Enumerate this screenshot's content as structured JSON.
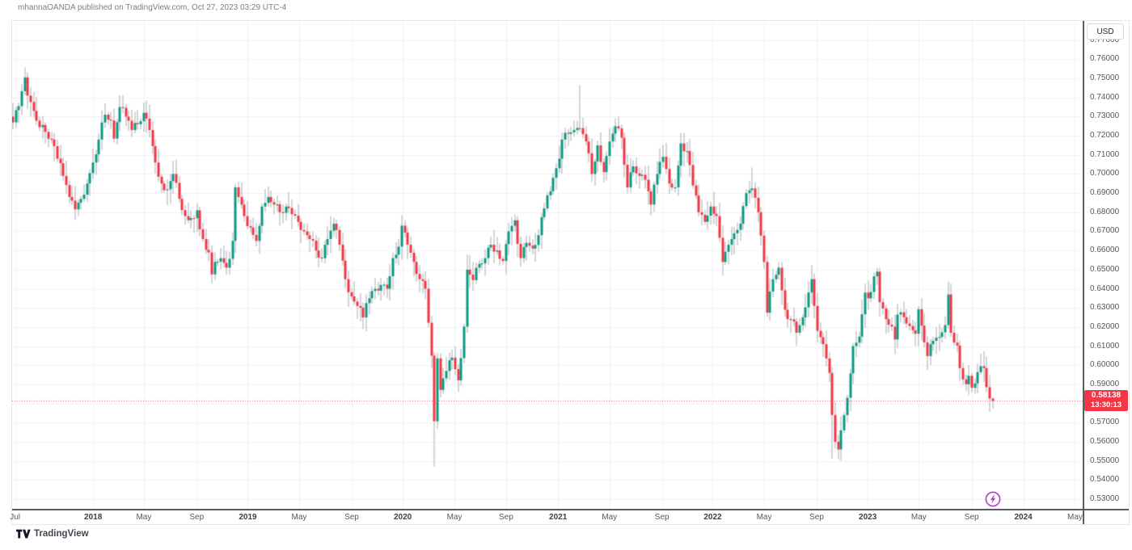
{
  "header": {
    "attribution": "mhannaOANDA published on TradingView.com, Oct 27, 2023 03:29 UTC-4"
  },
  "footer": {
    "logo_text": "TradingView"
  },
  "price_axis": {
    "currency_button": "USD",
    "ticks": [
      "0.77000",
      "0.76000",
      "0.75000",
      "0.74000",
      "0.73000",
      "0.72000",
      "0.71000",
      "0.70000",
      "0.69000",
      "0.68000",
      "0.67000",
      "0.66000",
      "0.65000",
      "0.64000",
      "0.63000",
      "0.62000",
      "0.61000",
      "0.60000",
      "0.59000",
      "0.57000",
      "0.56000",
      "0.55000",
      "0.54000",
      "0.53000"
    ],
    "last_price_label": {
      "price": "0.58138",
      "countdown": "13:30:13"
    }
  },
  "time_axis": {
    "ticks": [
      {
        "label": "Jul",
        "week": 0.71,
        "year": false
      },
      {
        "label": "2018",
        "week": 27,
        "year": true
      },
      {
        "label": "May",
        "week": 44.1,
        "year": false
      },
      {
        "label": "Sep",
        "week": 61.9,
        "year": false
      },
      {
        "label": "2019",
        "week": 79.1,
        "year": true
      },
      {
        "label": "May",
        "week": 96.4,
        "year": false
      },
      {
        "label": "Sep",
        "week": 114.1,
        "year": false
      },
      {
        "label": "2020",
        "week": 131.3,
        "year": true
      },
      {
        "label": "May",
        "week": 148.7,
        "year": false
      },
      {
        "label": "Sep",
        "week": 166.1,
        "year": false
      },
      {
        "label": "2021",
        "week": 183.6,
        "year": true
      },
      {
        "label": "May",
        "week": 200.9,
        "year": false
      },
      {
        "label": "Sep",
        "week": 218.6,
        "year": false
      },
      {
        "label": "2022",
        "week": 235.7,
        "year": true
      },
      {
        "label": "May",
        "week": 253.0,
        "year": false
      },
      {
        "label": "Sep",
        "week": 270.7,
        "year": false
      },
      {
        "label": "2023",
        "week": 287.9,
        "year": true
      },
      {
        "label": "May",
        "week": 305.1,
        "year": false
      },
      {
        "label": "Sep",
        "week": 322.9,
        "year": false
      },
      {
        "label": "2024",
        "week": 340.3,
        "year": true
      },
      {
        "label": "May",
        "week": 357.7,
        "year": false
      }
    ]
  },
  "marker": {
    "type": "lightning",
    "color": "#ab3fc1"
  },
  "chart_data": {
    "type": "candlestick",
    "quote_currency": "USD",
    "last_price": 0.58138,
    "countdown": "13:30:13",
    "visible_price_range": [
      0.5254,
      0.7792
    ],
    "grid": true,
    "up_color": "#089981",
    "down_color": "#f23645",
    "wick_color": "#a9acb3",
    "grid_color": "#f0f1f4",
    "last_price_color": "#f23645",
    "weeks_total": 331,
    "weekly_close_anchors": [
      [
        0,
        0.727
      ],
      [
        2,
        0.7355
      ],
      [
        4,
        0.7505
      ],
      [
        5,
        0.741
      ],
      [
        7,
        0.733
      ],
      [
        9,
        0.7245
      ],
      [
        11,
        0.722
      ],
      [
        13,
        0.718
      ],
      [
        15,
        0.708
      ],
      [
        17,
        0.699
      ],
      [
        19,
        0.688
      ],
      [
        21,
        0.6815
      ],
      [
        23,
        0.687
      ],
      [
        25,
        0.695
      ],
      [
        27,
        0.706
      ],
      [
        29,
        0.718
      ],
      [
        31,
        0.731
      ],
      [
        33,
        0.728
      ],
      [
        34,
        0.7185
      ],
      [
        36,
        0.735
      ],
      [
        38,
        0.73
      ],
      [
        40,
        0.723
      ],
      [
        42,
        0.726
      ],
      [
        44,
        0.732
      ],
      [
        46,
        0.723
      ],
      [
        48,
        0.706
      ],
      [
        50,
        0.695
      ],
      [
        52,
        0.692
      ],
      [
        54,
        0.7
      ],
      [
        56,
        0.687
      ],
      [
        58,
        0.678
      ],
      [
        60,
        0.677
      ],
      [
        62,
        0.681
      ],
      [
        64,
        0.666
      ],
      [
        66,
        0.659
      ],
      [
        67,
        0.6475
      ],
      [
        68,
        0.654
      ],
      [
        70,
        0.656
      ],
      [
        72,
        0.651
      ],
      [
        74,
        0.665
      ],
      [
        75,
        0.693
      ],
      [
        76,
        0.688
      ],
      [
        78,
        0.678
      ],
      [
        80,
        0.672
      ],
      [
        82,
        0.665
      ],
      [
        84,
        0.683
      ],
      [
        86,
        0.688
      ],
      [
        88,
        0.684
      ],
      [
        90,
        0.68
      ],
      [
        92,
        0.683
      ],
      [
        94,
        0.679
      ],
      [
        96,
        0.675
      ],
      [
        98,
        0.67
      ],
      [
        100,
        0.666
      ],
      [
        102,
        0.66
      ],
      [
        104,
        0.656
      ],
      [
        106,
        0.666
      ],
      [
        108,
        0.674
      ],
      [
        110,
        0.663
      ],
      [
        112,
        0.645
      ],
      [
        114,
        0.636
      ],
      [
        116,
        0.631
      ],
      [
        118,
        0.625
      ],
      [
        120,
        0.635
      ],
      [
        122,
        0.64
      ],
      [
        124,
        0.642
      ],
      [
        126,
        0.64
      ],
      [
        128,
        0.656
      ],
      [
        130,
        0.662
      ],
      [
        131,
        0.673
      ],
      [
        133,
        0.663
      ],
      [
        135,
        0.654
      ],
      [
        137,
        0.645
      ],
      [
        139,
        0.64
      ],
      [
        141,
        0.605
      ],
      [
        142,
        0.5707
      ],
      [
        143,
        0.6036
      ],
      [
        144,
        0.5871
      ],
      [
        146,
        0.597
      ],
      [
        148,
        0.604
      ],
      [
        150,
        0.5921
      ],
      [
        152,
        0.6202
      ],
      [
        153,
        0.65
      ],
      [
        155,
        0.6445
      ],
      [
        157,
        0.653
      ],
      [
        159,
        0.656
      ],
      [
        161,
        0.663
      ],
      [
        163,
        0.66
      ],
      [
        165,
        0.6545
      ],
      [
        167,
        0.67
      ],
      [
        169,
        0.6758
      ],
      [
        171,
        0.656
      ],
      [
        173,
        0.664
      ],
      [
        175,
        0.661
      ],
      [
        177,
        0.668
      ],
      [
        179,
        0.682
      ],
      [
        181,
        0.691
      ],
      [
        183,
        0.703
      ],
      [
        185,
        0.718
      ],
      [
        187,
        0.721
      ],
      [
        189,
        0.723
      ],
      [
        191,
        0.724
      ],
      [
        193,
        0.717
      ],
      [
        195,
        0.7
      ],
      [
        197,
        0.715
      ],
      [
        199,
        0.701
      ],
      [
        201,
        0.717
      ],
      [
        203,
        0.725
      ],
      [
        205,
        0.719
      ],
      [
        207,
        0.693
      ],
      [
        209,
        0.704
      ],
      [
        211,
        0.699
      ],
      [
        213,
        0.697
      ],
      [
        215,
        0.684
      ],
      [
        217,
        0.7
      ],
      [
        219,
        0.709
      ],
      [
        221,
        0.695
      ],
      [
        223,
        0.693
      ],
      [
        225,
        0.716
      ],
      [
        227,
        0.712
      ],
      [
        229,
        0.694
      ],
      [
        231,
        0.68
      ],
      [
        233,
        0.675
      ],
      [
        235,
        0.683
      ],
      [
        237,
        0.678
      ],
      [
        239,
        0.654
      ],
      [
        241,
        0.663
      ],
      [
        243,
        0.669
      ],
      [
        245,
        0.674
      ],
      [
        247,
        0.69
      ],
      [
        249,
        0.6925
      ],
      [
        251,
        0.68
      ],
      [
        253,
        0.654
      ],
      [
        254,
        0.6275
      ],
      [
        256,
        0.645
      ],
      [
        258,
        0.651
      ],
      [
        260,
        0.629
      ],
      [
        262,
        0.624
      ],
      [
        264,
        0.617
      ],
      [
        266,
        0.625
      ],
      [
        268,
        0.638
      ],
      [
        269,
        0.645
      ],
      [
        271,
        0.618
      ],
      [
        273,
        0.611
      ],
      [
        275,
        0.596
      ],
      [
        276,
        0.574
      ],
      [
        277,
        0.56
      ],
      [
        278,
        0.556
      ],
      [
        279,
        0.566
      ],
      [
        281,
        0.583
      ],
      [
        283,
        0.61
      ],
      [
        285,
        0.615
      ],
      [
        287,
        0.638
      ],
      [
        288,
        0.635
      ],
      [
        289,
        0.6383
      ],
      [
        290,
        0.6465
      ],
      [
        291,
        0.6489
      ],
      [
        292,
        0.633
      ],
      [
        294,
        0.6241
      ],
      [
        296,
        0.6202
      ],
      [
        297,
        0.6135
      ],
      [
        298,
        0.6265
      ],
      [
        300,
        0.6251
      ],
      [
        302,
        0.6205
      ],
      [
        304,
        0.6165
      ],
      [
        305,
        0.6293
      ],
      [
        306,
        0.6207
      ],
      [
        308,
        0.6048
      ],
      [
        310,
        0.6128
      ],
      [
        312,
        0.6148
      ],
      [
        314,
        0.621
      ],
      [
        315,
        0.637
      ],
      [
        316,
        0.617
      ],
      [
        318,
        0.6103
      ],
      [
        319,
        0.5985
      ],
      [
        320,
        0.5926
      ],
      [
        321,
        0.5901
      ],
      [
        322,
        0.5945
      ],
      [
        323,
        0.5882
      ],
      [
        324,
        0.5905
      ],
      [
        325,
        0.5964
      ],
      [
        326,
        0.5995
      ],
      [
        327,
        0.5985
      ],
      [
        328,
        0.5885
      ],
      [
        329,
        0.5826
      ],
      [
        330,
        0.58138
      ]
    ],
    "overrides": {
      "4": {
        "h": 0.7558
      },
      "142": {
        "l": 0.547
      },
      "191": {
        "h": 0.7465
      },
      "249": {
        "h": 0.7034
      },
      "276": {
        "l": 0.5512
      },
      "330": {
        "h": 0.5833,
        "l": 0.5774
      }
    }
  }
}
